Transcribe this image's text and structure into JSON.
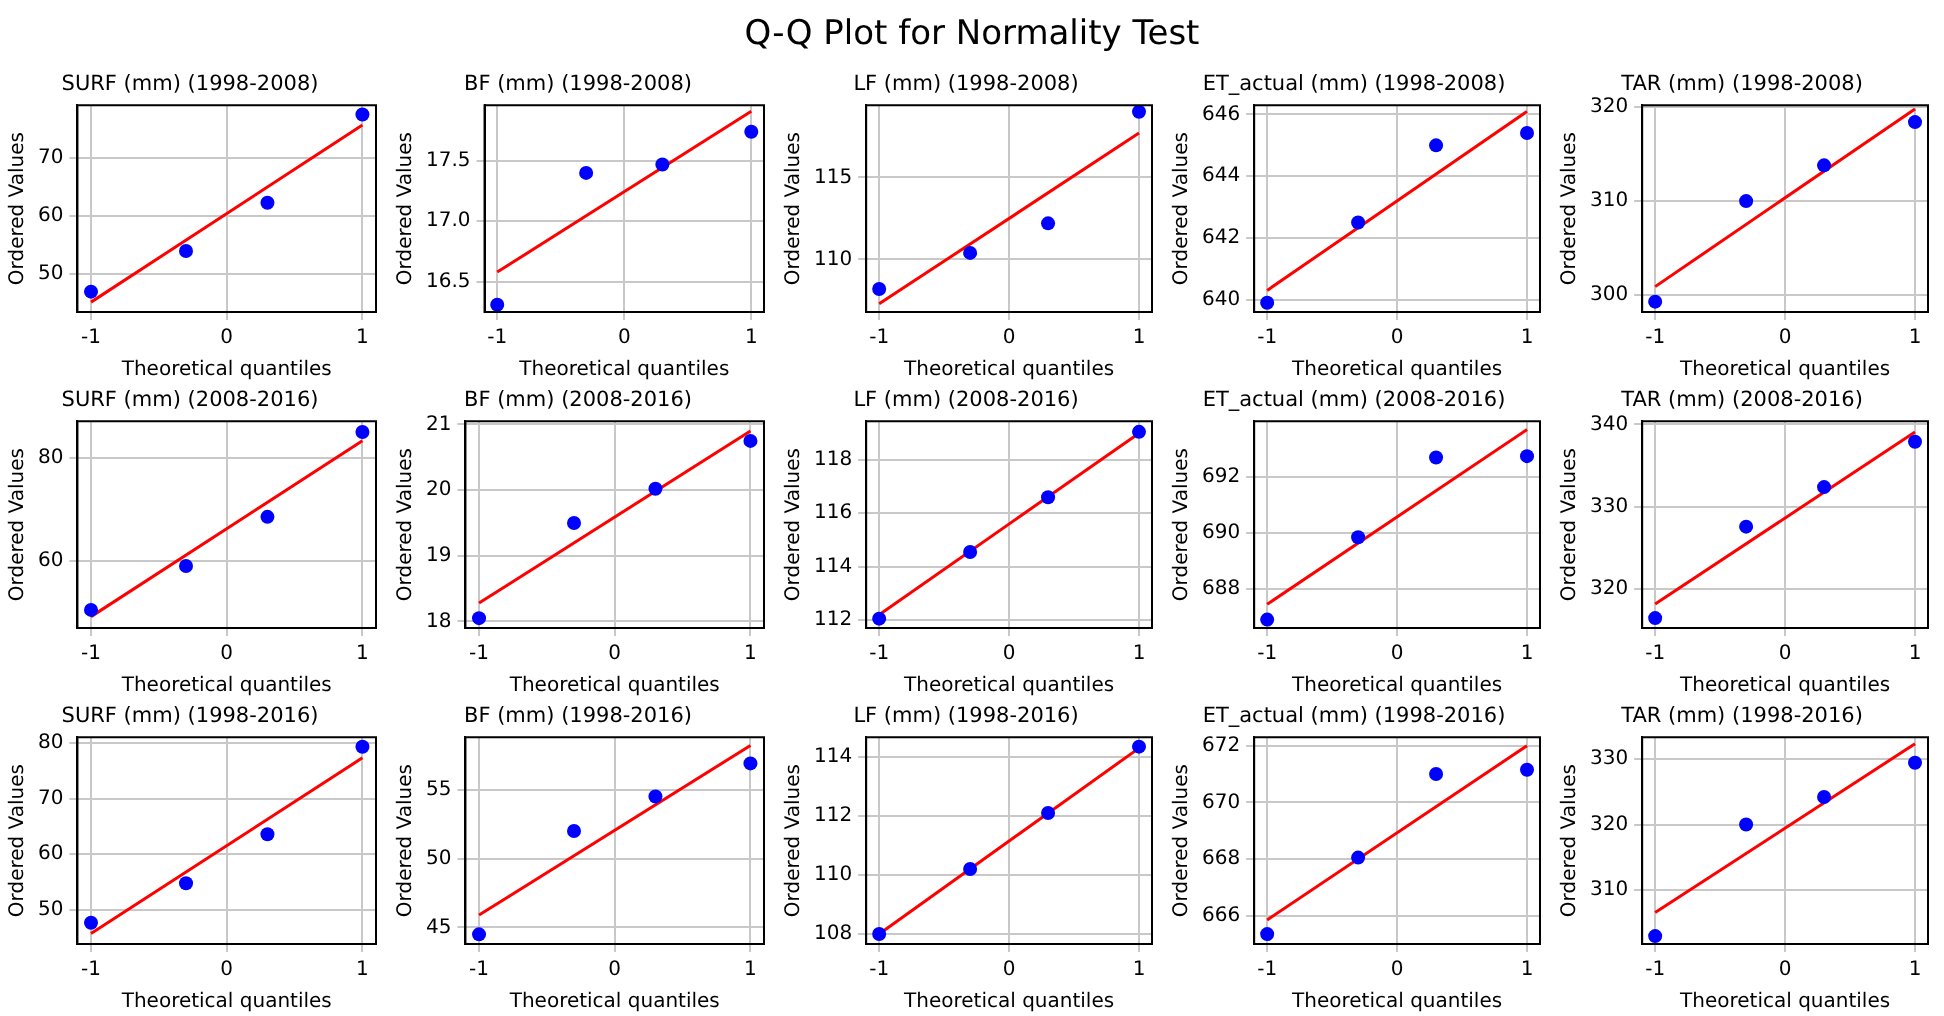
{
  "chart_data": [
    {
      "type": "other",
      "title": "Q-Q Plot for Normality Test"
    },
    {
      "type": "scatter",
      "title": "SURF (mm) (1998-2008)",
      "xlabel": "Theoretical quantiles",
      "ylabel": "Ordered Values",
      "xlim": [
        -1.1,
        1.1
      ],
      "xticks": [
        -1,
        0,
        1
      ],
      "ylim": [
        43.5,
        79.1
      ],
      "yticks": [
        50,
        60,
        70
      ],
      "grid": true,
      "series": [
        {
          "type": "scatter",
          "color": "#0000ff",
          "marker": "circle",
          "x": [
            -1,
            -0.3,
            0.3,
            1
          ],
          "values": [
            47,
            54,
            62.3,
            77.5
          ]
        },
        {
          "type": "line",
          "color": "#ff0000",
          "marker": "none",
          "x": [
            -1,
            1
          ],
          "values": [
            45.2,
            75.7
          ]
        }
      ]
    },
    {
      "type": "scatter",
      "title": "BF (mm) (1998-2008)",
      "xlabel": "Theoretical quantiles",
      "ylabel": "Ordered Values",
      "xlim": [
        -1.1,
        1.1
      ],
      "xticks": [
        -1,
        0,
        1
      ],
      "ylim": [
        16.25,
        17.96
      ],
      "yticks": [
        16.5,
        {
          "value": 17,
          "label": "17.0"
        },
        17.5
      ],
      "grid": true,
      "series": [
        {
          "type": "scatter",
          "color": "#0000ff",
          "marker": "circle",
          "x": [
            -1,
            -0.3,
            0.3,
            1
          ],
          "values": [
            16.31,
            17.4,
            17.47,
            17.74
          ]
        },
        {
          "type": "line",
          "color": "#ff0000",
          "marker": "none",
          "x": [
            -1,
            1
          ],
          "values": [
            16.58,
            17.91
          ]
        }
      ]
    },
    {
      "type": "scatter",
      "title": "LF (mm) (1998-2008)",
      "xlabel": "Theoretical quantiles",
      "ylabel": "Ordered Values",
      "xlim": [
        -1.1,
        1.1
      ],
      "xticks": [
        -1,
        0,
        1
      ],
      "ylim": [
        106.8,
        119.4
      ],
      "yticks": [
        110,
        115
      ],
      "grid": true,
      "series": [
        {
          "type": "scatter",
          "color": "#0000ff",
          "marker": "circle",
          "x": [
            -1,
            -0.3,
            0.3,
            1
          ],
          "values": [
            108.2,
            110.4,
            112.2,
            119
          ]
        },
        {
          "type": "line",
          "color": "#ff0000",
          "marker": "none",
          "x": [
            -1,
            1
          ],
          "values": [
            107.3,
            117.7
          ]
        }
      ]
    },
    {
      "type": "scatter",
      "title": "ET_actual (mm) (1998-2008)",
      "xlabel": "Theoretical quantiles",
      "ylabel": "Ordered Values",
      "xlim": [
        -1.1,
        1.1
      ],
      "xticks": [
        -1,
        0,
        1
      ],
      "ylim": [
        639.6,
        646.3
      ],
      "yticks": [
        640,
        642,
        644,
        646
      ],
      "grid": true,
      "series": [
        {
          "type": "scatter",
          "color": "#0000ff",
          "marker": "circle",
          "x": [
            -1,
            -0.3,
            0.3,
            1
          ],
          "values": [
            639.9,
            642.5,
            645,
            645.4
          ]
        },
        {
          "type": "line",
          "color": "#ff0000",
          "marker": "none",
          "x": [
            -1,
            1
          ],
          "values": [
            640.3,
            646.1
          ]
        }
      ]
    },
    {
      "type": "scatter",
      "title": "TAR (mm) (1998-2008)",
      "xlabel": "Theoretical quantiles",
      "ylabel": "Ordered Values",
      "xlim": [
        -1.1,
        1.1
      ],
      "xticks": [
        -1,
        0,
        1
      ],
      "ylim": [
        298.2,
        320.2
      ],
      "yticks": [
        300,
        310,
        320
      ],
      "grid": true,
      "series": [
        {
          "type": "scatter",
          "color": "#0000ff",
          "marker": "circle",
          "x": [
            -1,
            -0.3,
            0.3,
            1
          ],
          "values": [
            299.3,
            310,
            313.8,
            318.4
          ]
        },
        {
          "type": "line",
          "color": "#ff0000",
          "marker": "none",
          "x": [
            -1,
            1
          ],
          "values": [
            300.9,
            319.8
          ]
        }
      ]
    },
    {
      "type": "scatter",
      "title": "SURF (mm) (2008-2016)",
      "xlabel": "Theoretical quantiles",
      "ylabel": "Ordered Values",
      "xlim": [
        -1.1,
        1.1
      ],
      "xticks": [
        -1,
        0,
        1
      ],
      "ylim": [
        47.1,
        87.1
      ],
      "yticks": [
        60,
        80
      ],
      "grid": true,
      "series": [
        {
          "type": "scatter",
          "color": "#0000ff",
          "marker": "circle",
          "x": [
            -1,
            -0.3,
            0.3,
            1
          ],
          "values": [
            50.6,
            59.1,
            68.6,
            85
          ]
        },
        {
          "type": "line",
          "color": "#ff0000",
          "marker": "none",
          "x": [
            -1,
            1
          ],
          "values": [
            49.3,
            83.3
          ]
        }
      ]
    },
    {
      "type": "scatter",
      "title": "BF (mm) (2008-2016)",
      "xlabel": "Theoretical quantiles",
      "ylabel": "Ordered Values",
      "xlim": [
        -1.1,
        1.1
      ],
      "xticks": [
        -1,
        0,
        1
      ],
      "ylim": [
        17.9,
        21.05
      ],
      "yticks": [
        18,
        19,
        20,
        21
      ],
      "grid": true,
      "series": [
        {
          "type": "scatter",
          "color": "#0000ff",
          "marker": "circle",
          "x": [
            -1,
            -0.3,
            0.3,
            1
          ],
          "values": [
            18.05,
            19.5,
            20.02,
            20.75
          ]
        },
        {
          "type": "line",
          "color": "#ff0000",
          "marker": "none",
          "x": [
            -1,
            1
          ],
          "values": [
            18.28,
            20.9
          ]
        }
      ]
    },
    {
      "type": "scatter",
      "title": "LF (mm) (2008-2016)",
      "xlabel": "Theoretical quantiles",
      "ylabel": "Ordered Values",
      "xlim": [
        -1.1,
        1.1
      ],
      "xticks": [
        -1,
        0,
        1
      ],
      "ylim": [
        111.7,
        119.45
      ],
      "yticks": [
        112,
        114,
        116,
        118
      ],
      "grid": true,
      "series": [
        {
          "type": "scatter",
          "color": "#0000ff",
          "marker": "circle",
          "x": [
            -1,
            -0.3,
            0.3,
            1
          ],
          "values": [
            112.05,
            114.55,
            116.6,
            119.05
          ]
        },
        {
          "type": "line",
          "color": "#ff0000",
          "marker": "none",
          "x": [
            -1,
            1
          ],
          "values": [
            112.2,
            119
          ]
        }
      ]
    },
    {
      "type": "scatter",
      "title": "ET_actual (mm) (2008-2016)",
      "xlabel": "Theoretical quantiles",
      "ylabel": "Ordered Values",
      "xlim": [
        -1.1,
        1.1
      ],
      "xticks": [
        -1,
        0,
        1
      ],
      "ylim": [
        686.6,
        694
      ],
      "yticks": [
        688,
        690,
        692
      ],
      "grid": true,
      "series": [
        {
          "type": "scatter",
          "color": "#0000ff",
          "marker": "circle",
          "x": [
            -1,
            -0.3,
            0.3,
            1
          ],
          "values": [
            686.9,
            689.85,
            692.7,
            692.75
          ]
        },
        {
          "type": "line",
          "color": "#ff0000",
          "marker": "none",
          "x": [
            -1,
            1
          ],
          "values": [
            687.45,
            693.7
          ]
        }
      ]
    },
    {
      "type": "scatter",
      "title": "TAR (mm) (2008-2016)",
      "xlabel": "Theoretical quantiles",
      "ylabel": "Ordered Values",
      "xlim": [
        -1.1,
        1.1
      ],
      "xticks": [
        -1,
        0,
        1
      ],
      "ylim": [
        315.3,
        340.4
      ],
      "yticks": [
        320,
        330,
        340
      ],
      "grid": true,
      "series": [
        {
          "type": "scatter",
          "color": "#0000ff",
          "marker": "circle",
          "x": [
            -1,
            -0.3,
            0.3,
            1
          ],
          "values": [
            316.5,
            327.6,
            332.4,
            337.9
          ]
        },
        {
          "type": "line",
          "color": "#ff0000",
          "marker": "none",
          "x": [
            -1,
            1
          ],
          "values": [
            318.2,
            339.1
          ]
        }
      ]
    },
    {
      "type": "scatter",
      "title": "SURF (mm) (1998-2016)",
      "xlabel": "Theoretical quantiles",
      "ylabel": "Ordered Values",
      "xlim": [
        -1.1,
        1.1
      ],
      "xticks": [
        -1,
        0,
        1
      ],
      "ylim": [
        43.9,
        81
      ],
      "yticks": [
        50,
        60,
        70,
        80
      ],
      "grid": true,
      "series": [
        {
          "type": "scatter",
          "color": "#0000ff",
          "marker": "circle",
          "x": [
            -1,
            -0.3,
            0.3,
            1
          ],
          "values": [
            47.7,
            54.8,
            63.6,
            79.3
          ]
        },
        {
          "type": "line",
          "color": "#ff0000",
          "marker": "none",
          "x": [
            -1,
            1
          ],
          "values": [
            45.8,
            77.3
          ]
        }
      ]
    },
    {
      "type": "scatter",
      "title": "BF (mm) (1998-2016)",
      "xlabel": "Theoretical quantiles",
      "ylabel": "Ordered Values",
      "xlim": [
        -1.1,
        1.1
      ],
      "xticks": [
        -1,
        0,
        1
      ],
      "ylim": [
        43.8,
        58.8
      ],
      "yticks": [
        45,
        50,
        55
      ],
      "grid": true,
      "series": [
        {
          "type": "scatter",
          "color": "#0000ff",
          "marker": "circle",
          "x": [
            -1,
            -0.3,
            0.3,
            1
          ],
          "values": [
            44.5,
            52,
            54.5,
            56.9
          ]
        },
        {
          "type": "line",
          "color": "#ff0000",
          "marker": "none",
          "x": [
            -1,
            1
          ],
          "values": [
            45.9,
            58.2
          ]
        }
      ]
    },
    {
      "type": "scatter",
      "title": "LF (mm) (1998-2016)",
      "xlabel": "Theoretical quantiles",
      "ylabel": "Ordered Values",
      "xlim": [
        -1.1,
        1.1
      ],
      "xticks": [
        -1,
        0,
        1
      ],
      "ylim": [
        107.66,
        114.67
      ],
      "yticks": [
        108,
        110,
        112,
        114
      ],
      "grid": true,
      "series": [
        {
          "type": "scatter",
          "color": "#0000ff",
          "marker": "circle",
          "x": [
            -1,
            -0.3,
            0.3,
            1
          ],
          "values": [
            108,
            110.2,
            112.1,
            114.35
          ]
        },
        {
          "type": "line",
          "color": "#ff0000",
          "marker": "none",
          "x": [
            -1,
            1
          ],
          "values": [
            108,
            114.3
          ]
        }
      ]
    },
    {
      "type": "scatter",
      "title": "ET_actual (mm) (1998-2016)",
      "xlabel": "Theoretical quantiles",
      "ylabel": "Ordered Values",
      "xlim": [
        -1.1,
        1.1
      ],
      "xticks": [
        -1,
        0,
        1
      ],
      "ylim": [
        665,
        672.3
      ],
      "yticks": [
        666,
        668,
        670,
        672
      ],
      "grid": true,
      "series": [
        {
          "type": "scatter",
          "color": "#0000ff",
          "marker": "circle",
          "x": [
            -1,
            -0.3,
            0.3,
            1
          ],
          "values": [
            665.35,
            668.05,
            671,
            671.15
          ]
        },
        {
          "type": "line",
          "color": "#ff0000",
          "marker": "none",
          "x": [
            -1,
            1
          ],
          "values": [
            665.85,
            672
          ]
        }
      ]
    },
    {
      "type": "scatter",
      "title": "TAR (mm) (1998-2016)",
      "xlabel": "Theoretical quantiles",
      "ylabel": "Ordered Values",
      "xlim": [
        -1.1,
        1.1
      ],
      "xticks": [
        -1,
        0,
        1
      ],
      "ylim": [
        301.8,
        333.3
      ],
      "yticks": [
        310,
        320,
        330
      ],
      "grid": true,
      "series": [
        {
          "type": "scatter",
          "color": "#0000ff",
          "marker": "circle",
          "x": [
            -1,
            -0.3,
            0.3,
            1
          ],
          "values": [
            303,
            320,
            324.2,
            329.4
          ]
        },
        {
          "type": "line",
          "color": "#ff0000",
          "marker": "none",
          "x": [
            -1,
            1
          ],
          "values": [
            306.6,
            332.3
          ]
        }
      ]
    }
  ]
}
